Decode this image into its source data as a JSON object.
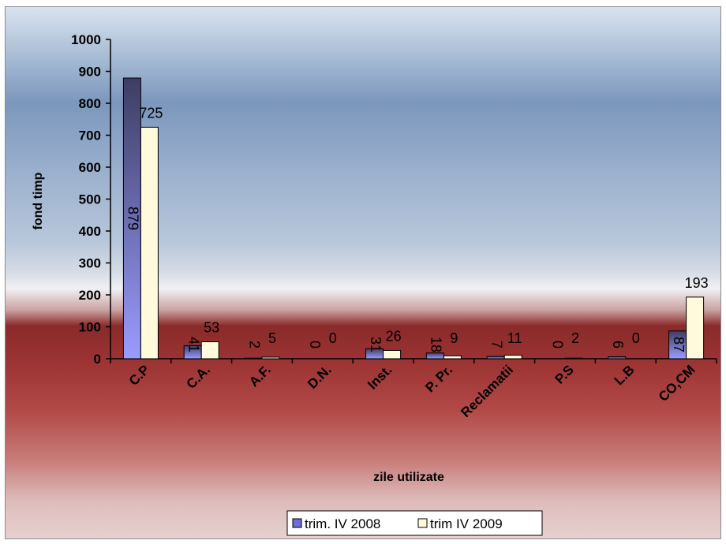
{
  "chart_data": {
    "type": "bar",
    "categories": [
      "C.P",
      "C.A.",
      "A.F.",
      "D.N.",
      "Inst.",
      "P. Pr.",
      "Reclamatii",
      "P.S",
      "L.B",
      "CO,CM"
    ],
    "series": [
      {
        "name": "trim. IV 2008",
        "values": [
          879,
          41,
          2,
          0,
          31,
          18,
          7,
          0,
          6,
          87
        ],
        "color": "#6b6fd6"
      },
      {
        "name": "trim IV 2009",
        "values": [
          725,
          53,
          5,
          0,
          26,
          9,
          11,
          2,
          0,
          193
        ],
        "color": "#fffadc"
      }
    ],
    "xlabel": "zile utilizate",
    "ylabel": "fond timp",
    "ylim": [
      0,
      1000
    ],
    "yticks": [
      0,
      100,
      200,
      300,
      400,
      500,
      600,
      700,
      800,
      900,
      1000
    ],
    "grid": false,
    "legend_position": "bottom"
  }
}
